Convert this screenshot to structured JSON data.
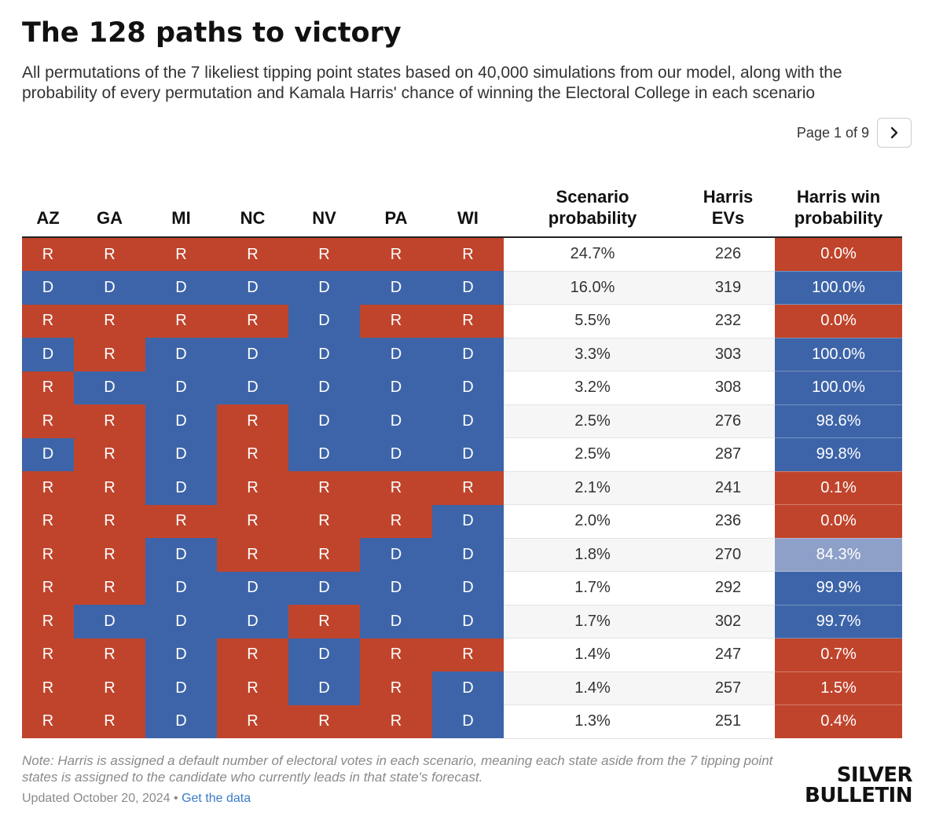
{
  "title": "The 128 paths to victory",
  "subtitle": "All permutations of the 7 likeliest tipping point states based on 40,000 simulations from our model, along with the probability of every permutation and Kamala Harris' chance of winning the Electoral College in each scenario",
  "pager": {
    "text": "Page 1 of 9",
    "next_icon": "chevron-right-icon"
  },
  "colors": {
    "R": "#c0442c",
    "D": "#3d64a8",
    "tossup": "#8ea0c8"
  },
  "chart_data": {
    "type": "table",
    "columns": [
      "AZ",
      "GA",
      "MI",
      "NC",
      "NV",
      "PA",
      "WI",
      "Scenario probability",
      "Harris EVs",
      "Harris win probability"
    ],
    "column_lines": [
      [
        "AZ"
      ],
      [
        "GA"
      ],
      [
        "MI"
      ],
      [
        "NC"
      ],
      [
        "NV"
      ],
      [
        "PA"
      ],
      [
        "WI"
      ],
      [
        "Scenario",
        "probability"
      ],
      [
        "Harris",
        "EVs"
      ],
      [
        "Harris win",
        "probability"
      ]
    ],
    "rows": [
      {
        "states": [
          "R",
          "R",
          "R",
          "R",
          "R",
          "R",
          "R"
        ],
        "scenario": "24.7%",
        "evs": "226",
        "win": "0.0%"
      },
      {
        "states": [
          "D",
          "D",
          "D",
          "D",
          "D",
          "D",
          "D"
        ],
        "scenario": "16.0%",
        "evs": "319",
        "win": "100.0%"
      },
      {
        "states": [
          "R",
          "R",
          "R",
          "R",
          "D",
          "R",
          "R"
        ],
        "scenario": "5.5%",
        "evs": "232",
        "win": "0.0%"
      },
      {
        "states": [
          "D",
          "R",
          "D",
          "D",
          "D",
          "D",
          "D"
        ],
        "scenario": "3.3%",
        "evs": "303",
        "win": "100.0%"
      },
      {
        "states": [
          "R",
          "D",
          "D",
          "D",
          "D",
          "D",
          "D"
        ],
        "scenario": "3.2%",
        "evs": "308",
        "win": "100.0%"
      },
      {
        "states": [
          "R",
          "R",
          "D",
          "R",
          "D",
          "D",
          "D"
        ],
        "scenario": "2.5%",
        "evs": "276",
        "win": "98.6%"
      },
      {
        "states": [
          "D",
          "R",
          "D",
          "R",
          "D",
          "D",
          "D"
        ],
        "scenario": "2.5%",
        "evs": "287",
        "win": "99.8%"
      },
      {
        "states": [
          "R",
          "R",
          "D",
          "R",
          "R",
          "R",
          "R"
        ],
        "scenario": "2.1%",
        "evs": "241",
        "win": "0.1%"
      },
      {
        "states": [
          "R",
          "R",
          "R",
          "R",
          "R",
          "R",
          "D"
        ],
        "scenario": "2.0%",
        "evs": "236",
        "win": "0.0%"
      },
      {
        "states": [
          "R",
          "R",
          "D",
          "R",
          "R",
          "D",
          "D"
        ],
        "scenario": "1.8%",
        "evs": "270",
        "win": "84.3%"
      },
      {
        "states": [
          "R",
          "R",
          "D",
          "D",
          "D",
          "D",
          "D"
        ],
        "scenario": "1.7%",
        "evs": "292",
        "win": "99.9%"
      },
      {
        "states": [
          "R",
          "D",
          "D",
          "D",
          "R",
          "D",
          "D"
        ],
        "scenario": "1.7%",
        "evs": "302",
        "win": "99.7%"
      },
      {
        "states": [
          "R",
          "R",
          "D",
          "R",
          "D",
          "R",
          "R"
        ],
        "scenario": "1.4%",
        "evs": "247",
        "win": "0.7%"
      },
      {
        "states": [
          "R",
          "R",
          "D",
          "R",
          "D",
          "R",
          "D"
        ],
        "scenario": "1.4%",
        "evs": "257",
        "win": "1.5%"
      },
      {
        "states": [
          "R",
          "R",
          "D",
          "R",
          "R",
          "R",
          "D"
        ],
        "scenario": "1.3%",
        "evs": "251",
        "win": "0.4%"
      }
    ]
  },
  "note": "Note: Harris is assigned a default number of electoral votes in each scenario, meaning each state aside from the 7 tipping point states is assigned to the candidate who currently leads in that state's forecast.",
  "footer": {
    "updated": "Updated October 20, 2024",
    "separator": " • ",
    "link": "Get the data"
  },
  "logo": {
    "line1": "SILVER",
    "line2": "BULLETIN"
  }
}
